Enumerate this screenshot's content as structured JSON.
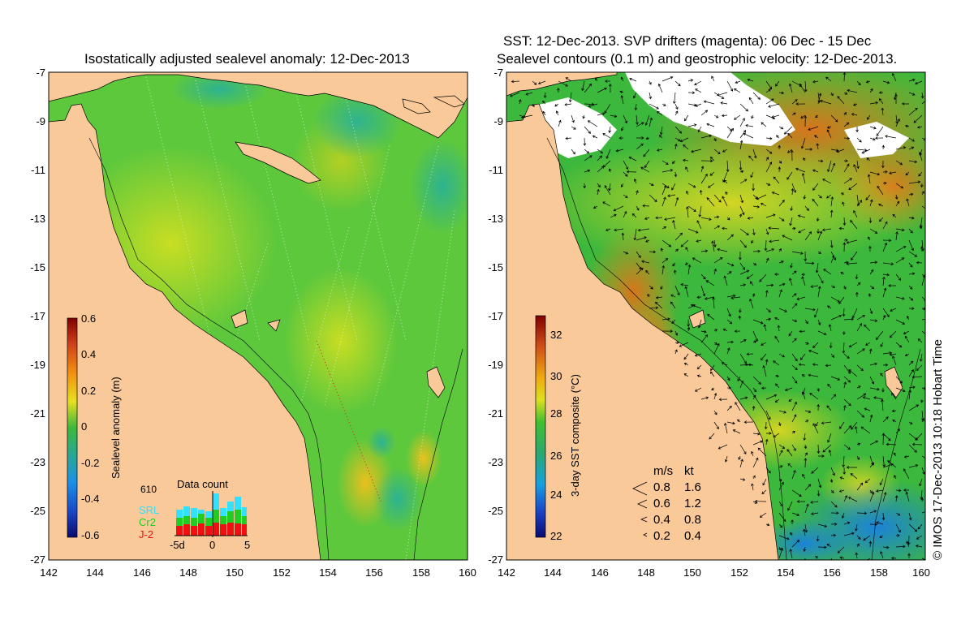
{
  "left_panel": {
    "title": "Isostatically adjusted sealevel anomaly: 12-Dec-2013",
    "colorbar_label": "Sealevel anomaly (m)",
    "colorbar_ticks": [
      "0.6",
      "0.4",
      "0.2",
      "0",
      "-0.2",
      "-0.4",
      "-0.6"
    ],
    "data_count": {
      "title": "Data count",
      "max_label": "610",
      "legend": [
        {
          "name": "SRL",
          "color": "#33e0ff"
        },
        {
          "name": "Cr2",
          "color": "#22cc22"
        },
        {
          "name": "J-2",
          "color": "#ee1111"
        }
      ],
      "xticks": [
        "-5d",
        "0",
        "5"
      ]
    }
  },
  "right_panel": {
    "title_line1": "SST: 12-Dec-2013. SVP drifters (magenta): 06 Dec - 15 Dec",
    "title_line2": "Sealevel contours (0.1 m) and geostrophic velocity: 12-Dec-2013.",
    "colorbar_label": "3-day SST composite (°C)",
    "colorbar_ticks": [
      "32",
      "30",
      "28",
      "26",
      "24",
      "22"
    ],
    "velocity_legend": {
      "header_ms": "m/s",
      "header_kt": "kt",
      "rows": [
        [
          "0.8",
          "1.6"
        ],
        [
          "0.6",
          "1.2"
        ],
        [
          "0.4",
          "0.8"
        ],
        [
          "0.2",
          "0.4"
        ]
      ]
    },
    "credit": "© IMOS 17-Dec-2013 10:18 Hobart Time"
  },
  "axes": {
    "lat_ticks": [
      "-7",
      "-9",
      "-11",
      "-13",
      "-15",
      "-17",
      "-19",
      "-21",
      "-23",
      "-25",
      "-27"
    ],
    "lon_ticks": [
      "142",
      "144",
      "146",
      "148",
      "150",
      "152",
      "154",
      "156",
      "158",
      "160"
    ]
  },
  "colors": {
    "land": "#f9c99a",
    "slanomaly_base": "#5ec83c",
    "sst_base": "#3cb83c"
  }
}
